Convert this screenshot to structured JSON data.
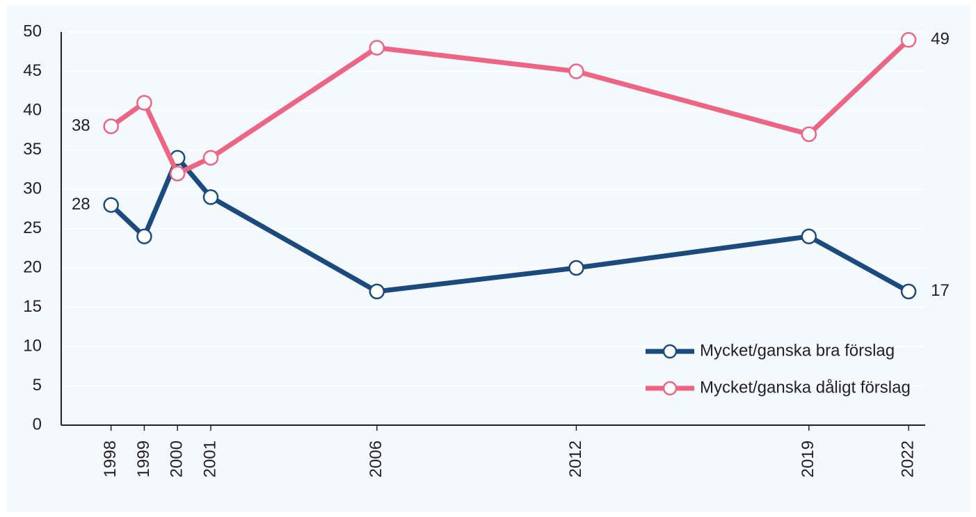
{
  "chart_data": {
    "type": "line",
    "x": [
      1998,
      1999,
      2000,
      2001,
      2006,
      2012,
      2019,
      2022
    ],
    "series": [
      {
        "name": "Mycket/ganska bra förslag",
        "color": "#1b4a7f",
        "values": [
          28,
          24,
          34,
          29,
          17,
          20,
          24,
          17
        ]
      },
      {
        "name": "Mycket/ganska dåligt förslag",
        "color": "#ee6482",
        "values": [
          38,
          41,
          32,
          34,
          48,
          45,
          37,
          49
        ]
      }
    ],
    "xlim": [
      1996.5,
      2022.5
    ],
    "xticks": [
      1998,
      1999,
      2000,
      2001,
      2006,
      2012,
      2019,
      2022
    ],
    "ylim": [
      0,
      50
    ],
    "yticks": [
      0,
      5,
      10,
      15,
      20,
      25,
      30,
      35,
      40,
      45,
      50
    ],
    "grid": true,
    "legend": "lower right"
  }
}
